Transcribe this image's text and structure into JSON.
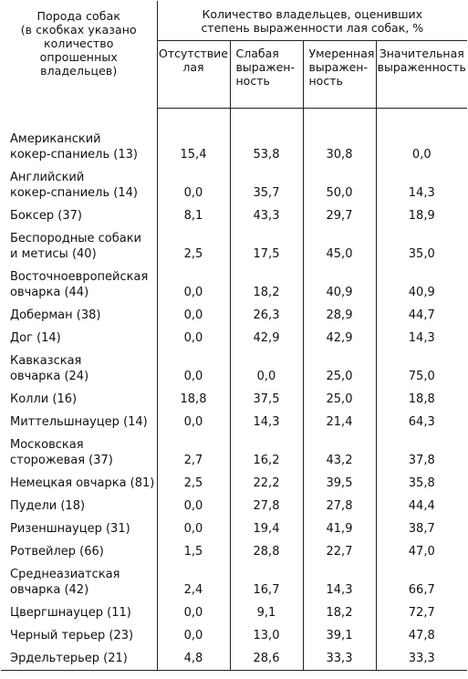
{
  "header": {
    "breed_col": [
      "Порода собак",
      "(в скобках указано",
      "количество",
      "опрошенных владельцев)"
    ],
    "group_title": [
      "Количество владельцев, оценивших",
      "степень выраженности лая собак, %"
    ],
    "sub_cols": [
      [
        "Отсутствие",
        "лая"
      ],
      [
        "Слабая",
        "выражен-",
        "ность"
      ],
      [
        "Умеренная",
        "выражен-",
        "ность"
      ],
      [
        "Значительная",
        "выраженность"
      ]
    ]
  },
  "rows": [
    {
      "breed": [
        "Американский",
        "кокер-спаниель  (13)"
      ],
      "values": [
        "15,4",
        "53,8",
        "30,8",
        "0,0"
      ]
    },
    {
      "breed": [
        "Английский",
        "кокер-спаниель  (14)"
      ],
      "values": [
        "0,0",
        "35,7",
        "50,0",
        "14,3"
      ]
    },
    {
      "breed": [
        "Боксер  (37)"
      ],
      "values": [
        "8,1",
        "43,3",
        "29,7",
        "18,9"
      ]
    },
    {
      "breed": [
        "Беспородные  собаки",
        "и  метисы  (40)"
      ],
      "values": [
        "2,5",
        "17,5",
        "45,0",
        "35,0"
      ]
    },
    {
      "breed": [
        "Восточноевропейская",
        "овчарка  (44)"
      ],
      "values": [
        "0,0",
        "18,2",
        "40,9",
        "40,9"
      ]
    },
    {
      "breed": [
        "Доберман  (38)"
      ],
      "values": [
        "0,0",
        "26,3",
        "28,9",
        "44,7"
      ]
    },
    {
      "breed": [
        "Дог  (14)"
      ],
      "values": [
        "0,0",
        "42,9",
        "42,9",
        "14,3"
      ]
    },
    {
      "breed": [
        "Кавказская",
        "овчарка  (24)"
      ],
      "values": [
        "0,0",
        "0,0",
        "25,0",
        "75,0"
      ]
    },
    {
      "breed": [
        "Колли  (16)"
      ],
      "values": [
        "18,8",
        "37,5",
        "25,0",
        "18,8"
      ]
    },
    {
      "breed": [
        "Миттельшнауцер  (14)"
      ],
      "values": [
        "0,0",
        "14,3",
        "21,4",
        "64,3"
      ]
    },
    {
      "breed": [
        "Московская",
        "сторожевая  (37)"
      ],
      "values": [
        "2,7",
        "16,2",
        "43,2",
        "37,8"
      ]
    },
    {
      "breed": [
        "Немецкая  овчарка  (81)"
      ],
      "values": [
        "2,5",
        "22,2",
        "39,5",
        "35,8"
      ]
    },
    {
      "breed": [
        "Пудели  (18)"
      ],
      "values": [
        "0,0",
        "27,8",
        "27,8",
        "44,4"
      ]
    },
    {
      "breed": [
        "Ризеншнауцер  (31)"
      ],
      "values": [
        "0,0",
        "19,4",
        "41,9",
        "38,7"
      ]
    },
    {
      "breed": [
        "Ротвейлер  (66)"
      ],
      "values": [
        "1,5",
        "28,8",
        "22,7",
        "47,0"
      ]
    },
    {
      "breed": [
        "Среднеазиатская",
        "овчарка  (42)"
      ],
      "values": [
        "2,4",
        "16,7",
        "14,3",
        "66,7"
      ]
    },
    {
      "breed": [
        "Цвергшнауцер  (11)"
      ],
      "values": [
        "0,0",
        "9,1",
        "18,2",
        "72,7"
      ]
    },
    {
      "breed": [
        "Черный  терьер  (23)"
      ],
      "values": [
        "0,0",
        "13,0",
        "39,1",
        "47,8"
      ]
    },
    {
      "breed": [
        "Эрдельтерьер  (21)"
      ],
      "values": [
        "4,8",
        "28,6",
        "33,3",
        "33,3"
      ]
    }
  ]
}
